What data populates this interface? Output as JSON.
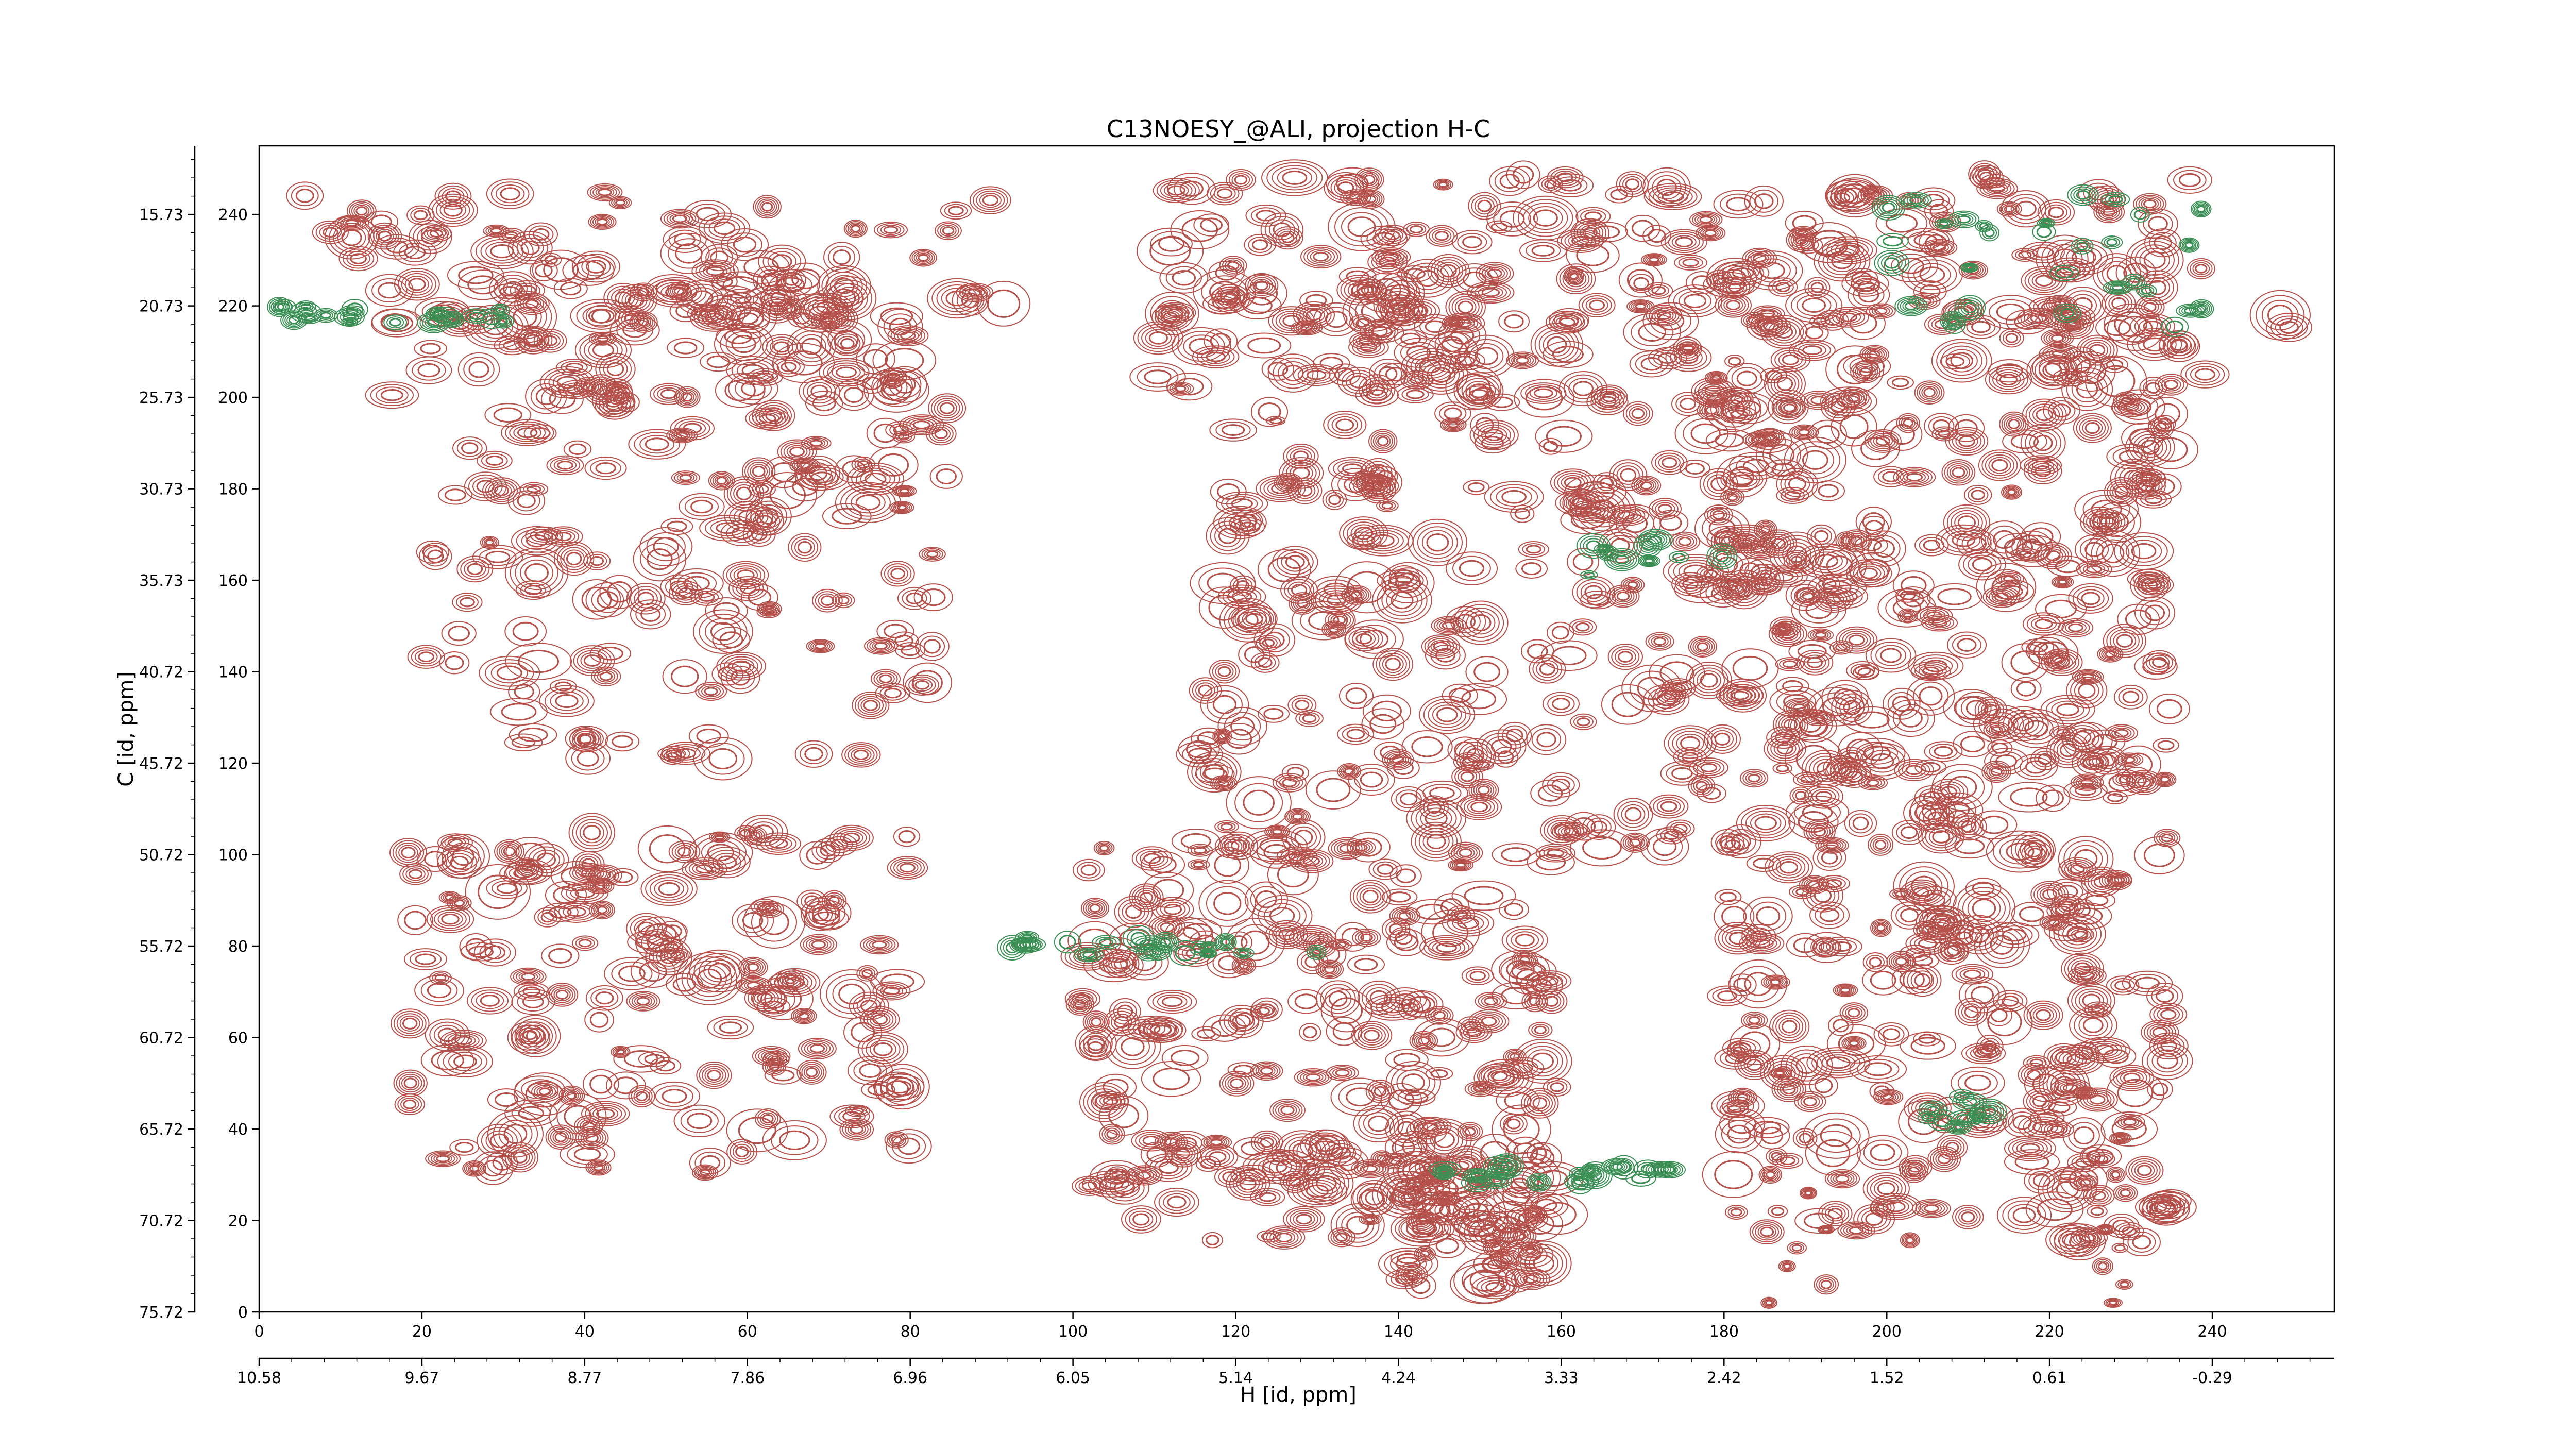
{
  "chart_data": {
    "type": "contour",
    "title": "C13NOESY_@ALI, projection H-C",
    "xlabel": "H [id, ppm]",
    "ylabel": "C [id, ppm]",
    "xlim": [
      0,
      255
    ],
    "ylim": [
      0,
      255
    ],
    "x_ticks_points": [
      "0",
      "20",
      "40",
      "60",
      "80",
      "100",
      "120",
      "140",
      "160",
      "180",
      "200",
      "220",
      "240"
    ],
    "x_ticks_ppm": [
      "10.58",
      "9.67",
      "8.77",
      "7.86",
      "6.96",
      "6.05",
      "5.14",
      "4.24",
      "3.33",
      "2.42",
      "1.52",
      "0.61",
      "-0.29"
    ],
    "y_ticks_points": [
      "0",
      "20",
      "40",
      "60",
      "80",
      "100",
      "120",
      "140",
      "160",
      "180",
      "200",
      "220",
      "240"
    ],
    "y_ticks_ppm": [
      "75.72",
      "70.72",
      "65.72",
      "60.72",
      "55.72",
      "50.72",
      "45.72",
      "40.72",
      "35.73",
      "30.73",
      "25.73",
      "20.73",
      "15.73"
    ],
    "grid": false,
    "colors": {
      "positive": "#b5504a",
      "negative": "#3a8f55",
      "axis": "#000000"
    }
  }
}
